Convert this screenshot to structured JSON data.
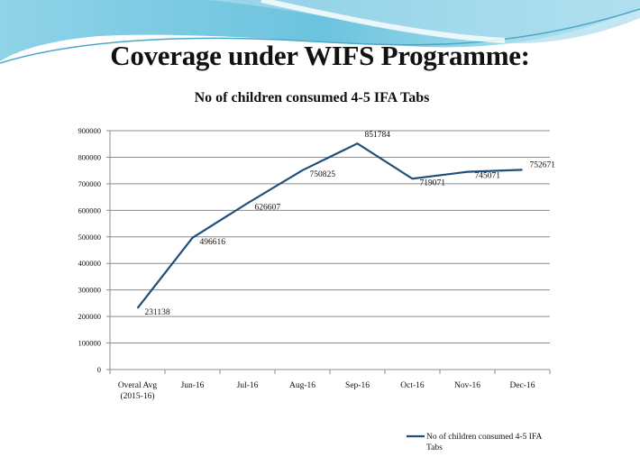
{
  "slide": {
    "title": "Coverage under WIFS Programme:"
  },
  "colors": {
    "line": "#1f4e79",
    "grid": "#8c8c8c",
    "swoosh_dark": "#5fb7d6",
    "swoosh_light": "#bfe6f2"
  },
  "chart_data": {
    "type": "line",
    "title": "No of children consumed 4-5 IFA Tabs",
    "xlabel": "",
    "ylabel": "",
    "categories": [
      [
        "Overal Avg",
        "(2015-16)"
      ],
      [
        "Jun-16"
      ],
      [
        "Jul-16"
      ],
      [
        "Aug-16"
      ],
      [
        "Sep-16"
      ],
      [
        "Oct-16"
      ],
      [
        "Nov-16"
      ],
      [
        "Dec-16"
      ]
    ],
    "series": [
      {
        "name": "No of children consumed 4-5 IFA Tabs",
        "values": [
          231138,
          496616,
          626607,
          750825,
          851784,
          719071,
          745071,
          752671
        ]
      }
    ],
    "data_labels": [
      "231138",
      "496616",
      "626607",
      "750825",
      "851784",
      "719071",
      "745071",
      "752671"
    ],
    "ylim": [
      0,
      900000
    ],
    "yticks": [
      "0",
      "100000",
      "200000",
      "300000",
      "400000",
      "500000",
      "600000",
      "700000",
      "800000",
      "900000"
    ],
    "grid": true,
    "legend": {
      "position": "bottom-right",
      "lines": [
        "No of children consumed 4-5 IFA",
        "Tabs"
      ]
    }
  }
}
